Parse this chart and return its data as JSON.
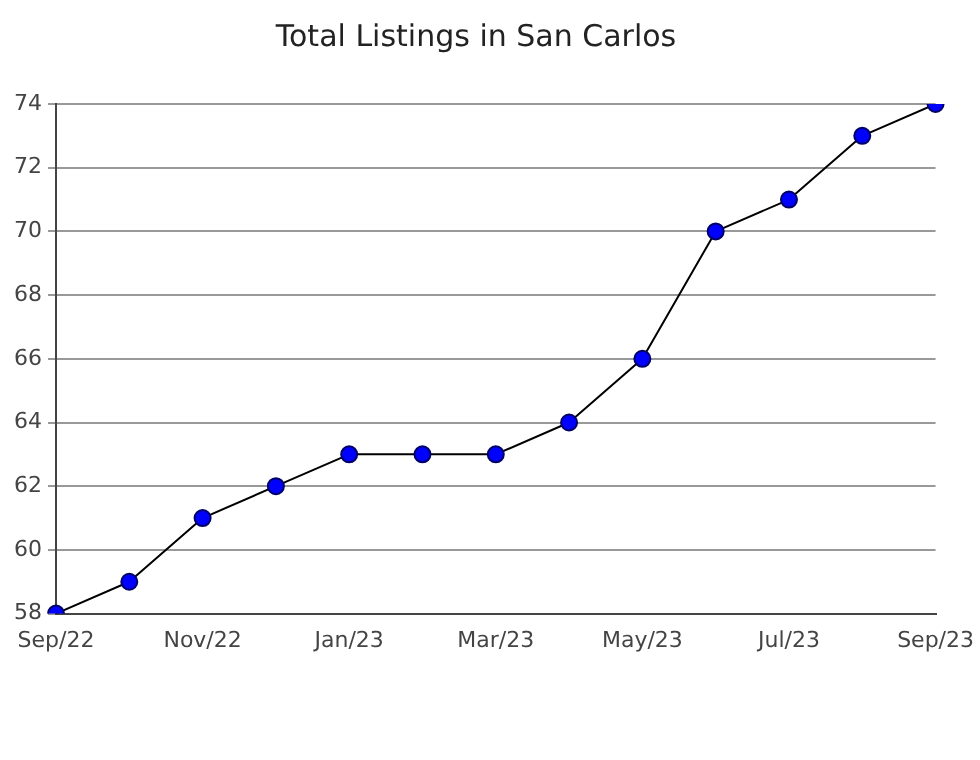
{
  "chart_data": {
    "type": "line",
    "title": "Total Listings in San Carlos",
    "categories": [
      "Sep/22",
      null,
      "Nov/22",
      null,
      "Jan/23",
      null,
      "Mar/23",
      null,
      "May/23",
      null,
      "Jul/23",
      null,
      "Sep/23"
    ],
    "series": [
      {
        "color": "#0000ff",
        "values": [
          58,
          59,
          61,
          62,
          63,
          63,
          63,
          64,
          66,
          70,
          71,
          73,
          74
        ]
      }
    ],
    "ylim": [
      58,
      74
    ],
    "yticks": [
      58,
      60,
      62,
      64,
      66,
      68,
      70,
      72,
      74
    ],
    "grid": "y",
    "marker": "circle",
    "legend": false
  }
}
